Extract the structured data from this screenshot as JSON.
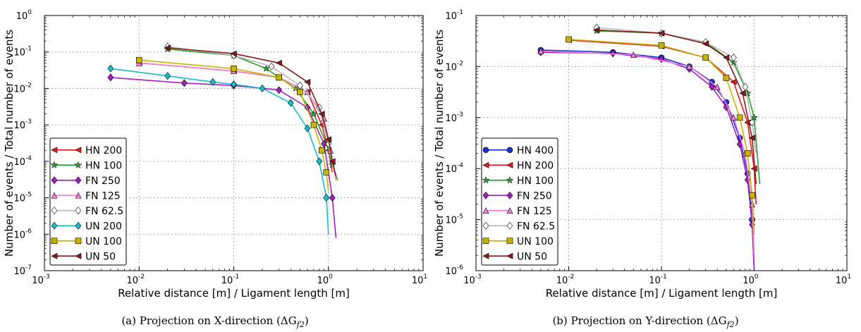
{
  "captions": [
    "(a) Projection on X-direction (ΔG",
    "(b) Projection on Y-direction (ΔG"
  ],
  "caption_subscript": "f2",
  "chart_data": [
    {
      "type": "line",
      "xlabel": "Relative distance [m] / Ligament length [m]",
      "ylabel": "Number of events / Total number of events",
      "xscale": "log",
      "yscale": "log",
      "xlim": [
        0.001,
        10
      ],
      "ylim": [
        1e-07,
        1
      ],
      "xticks": [
        "10",
        "10",
        "10",
        "10",
        "10"
      ],
      "xtick_exp": [
        "-3",
        "-2",
        "-1",
        "0",
        "1"
      ],
      "yticks": [
        "10",
        "10",
        "10",
        "10",
        "10",
        "10",
        "10",
        "10"
      ],
      "ytick_exp": [
        "-7",
        "-6",
        "-5",
        "-4",
        "-3",
        "-2",
        "-1",
        "0"
      ],
      "grid": true,
      "legend": "lower-left",
      "series": [
        {
          "name": "HN 200",
          "color": "#e41a1c",
          "marker": "tri-left",
          "x": [
            0.01,
            0.1,
            0.3,
            0.6,
            0.85,
            1.0,
            1.1
          ],
          "y": [
            0.05,
            0.03,
            0.02,
            0.008,
            0.001,
            0.0002,
            5e-05
          ]
        },
        {
          "name": "HN 100",
          "color": "#2ca02c",
          "marker": "star",
          "x": [
            0.02,
            0.1,
            0.22,
            0.45,
            0.7,
            0.95,
            1.1,
            1.25
          ],
          "y": [
            0.12,
            0.08,
            0.035,
            0.01,
            0.002,
            0.0003,
            8e-05,
            3e-05
          ]
        },
        {
          "name": "FN 250",
          "color": "#a020c0",
          "marker": "diamond",
          "x": [
            0.005,
            0.03,
            0.1,
            0.3,
            0.6,
            0.9,
            1.1,
            1.2
          ],
          "y": [
            0.02,
            0.014,
            0.012,
            0.009,
            0.003,
            0.0003,
            1e-05,
            8e-07
          ]
        },
        {
          "name": "FN 125",
          "color": "#f080d8",
          "marker": "triangle",
          "x": [
            0.01,
            0.1,
            0.3,
            0.6,
            0.9,
            1.05,
            1.2
          ],
          "y": [
            0.05,
            0.03,
            0.02,
            0.008,
            0.0015,
            0.0002,
            3e-05
          ]
        },
        {
          "name": "FN 62.5",
          "color": "#bbbbbb",
          "marker": "diamond-open",
          "x": [
            0.02,
            0.1,
            0.25,
            0.5,
            0.8,
            1.0,
            1.15
          ],
          "y": [
            0.14,
            0.08,
            0.04,
            0.012,
            0.003,
            0.0003,
            5e-05
          ]
        },
        {
          "name": "UN 200",
          "color": "#17becf",
          "marker": "diamond",
          "x": [
            0.005,
            0.02,
            0.06,
            0.1,
            0.2,
            0.4,
            0.6,
            0.8,
            0.95,
            1.0
          ],
          "y": [
            0.035,
            0.022,
            0.015,
            0.013,
            0.01,
            0.004,
            0.0008,
            0.0001,
            1e-05,
            1e-06
          ]
        },
        {
          "name": "UN 100",
          "color": "#c8b400",
          "marker": "square",
          "x": [
            0.01,
            0.1,
            0.3,
            0.5,
            0.7,
            0.85,
            0.95,
            1.0
          ],
          "y": [
            0.06,
            0.035,
            0.02,
            0.008,
            0.001,
            0.0002,
            5e-05,
            1.5e-05
          ]
        },
        {
          "name": "UN 50",
          "color": "#8b1a1a",
          "marker": "tri-left",
          "x": [
            0.02,
            0.1,
            0.3,
            0.6,
            0.85,
            1.0,
            1.1,
            1.2
          ],
          "y": [
            0.13,
            0.09,
            0.05,
            0.015,
            0.002,
            0.0004,
            0.0001,
            4e-05
          ]
        }
      ]
    },
    {
      "type": "line",
      "xlabel": "Relative distance [m] / Ligament length [m]",
      "ylabel": "Number of events / Total number of events",
      "xscale": "log",
      "yscale": "log",
      "xlim": [
        0.001,
        10
      ],
      "ylim": [
        1e-06,
        0.1
      ],
      "xticks": [
        "10",
        "10",
        "10",
        "10",
        "10"
      ],
      "xtick_exp": [
        "-3",
        "-2",
        "-1",
        "0",
        "1"
      ],
      "yticks": [
        "10",
        "10",
        "10",
        "10",
        "10",
        "10"
      ],
      "ytick_exp": [
        "-6",
        "-5",
        "-4",
        "-3",
        "-2",
        "-1"
      ],
      "grid": true,
      "legend": "lower-left",
      "series": [
        {
          "name": "HN 400",
          "color": "#1f2fd0",
          "marker": "circle",
          "x": [
            0.005,
            0.03,
            0.1,
            0.2,
            0.35,
            0.5,
            0.7,
            0.85,
            0.95,
            1.0
          ],
          "y": [
            0.021,
            0.019,
            0.015,
            0.01,
            0.005,
            0.002,
            0.0004,
            8e-05,
            1e-05,
            1e-06
          ]
        },
        {
          "name": "HN 200",
          "color": "#e41a1c",
          "marker": "tri-left",
          "x": [
            0.01,
            0.1,
            0.3,
            0.6,
            0.85,
            1.0,
            1.05
          ],
          "y": [
            0.033,
            0.025,
            0.015,
            0.005,
            0.0008,
            0.0001,
            2e-05
          ]
        },
        {
          "name": "HN 100",
          "color": "#2ca02c",
          "marker": "star",
          "x": [
            0.02,
            0.1,
            0.3,
            0.6,
            0.85,
            1.0,
            1.15
          ],
          "y": [
            0.05,
            0.045,
            0.03,
            0.012,
            0.003,
            0.001,
            5e-05
          ]
        },
        {
          "name": "FN 250",
          "color": "#a020c0",
          "marker": "diamond",
          "x": [
            0.005,
            0.03,
            0.1,
            0.2,
            0.35,
            0.5,
            0.7,
            0.85,
            0.95,
            1.0
          ],
          "y": [
            0.019,
            0.018,
            0.014,
            0.009,
            0.004,
            0.0016,
            0.0003,
            6e-05,
            8e-06,
            1e-06
          ]
        },
        {
          "name": "FN 125",
          "color": "#f080d8",
          "marker": "triangle",
          "x": [
            0.005,
            0.05,
            0.2,
            0.4,
            0.6,
            0.8,
            0.95,
            1.0
          ],
          "y": [
            0.02,
            0.017,
            0.01,
            0.004,
            0.001,
            0.0002,
            2e-05,
            2e-06
          ]
        },
        {
          "name": "FN 62.5",
          "color": "#bbbbbb",
          "marker": "diamond-open",
          "x": [
            0.02,
            0.1,
            0.3,
            0.6,
            0.8,
            0.95,
            1.05
          ],
          "y": [
            0.058,
            0.045,
            0.03,
            0.015,
            0.004,
            0.0008,
            0.0002
          ]
        },
        {
          "name": "UN 100",
          "color": "#c8b400",
          "marker": "square",
          "x": [
            0.01,
            0.1,
            0.3,
            0.5,
            0.7,
            0.85,
            0.95,
            1.0
          ],
          "y": [
            0.034,
            0.026,
            0.015,
            0.006,
            0.001,
            0.0002,
            3e-05,
            5e-06
          ]
        },
        {
          "name": "UN 50",
          "color": "#8b1a1a",
          "marker": "tri-left",
          "x": [
            0.02,
            0.1,
            0.3,
            0.5,
            0.75,
            0.95,
            1.05
          ],
          "y": [
            0.052,
            0.045,
            0.028,
            0.015,
            0.003,
            0.0004,
            5e-05
          ]
        }
      ]
    }
  ]
}
